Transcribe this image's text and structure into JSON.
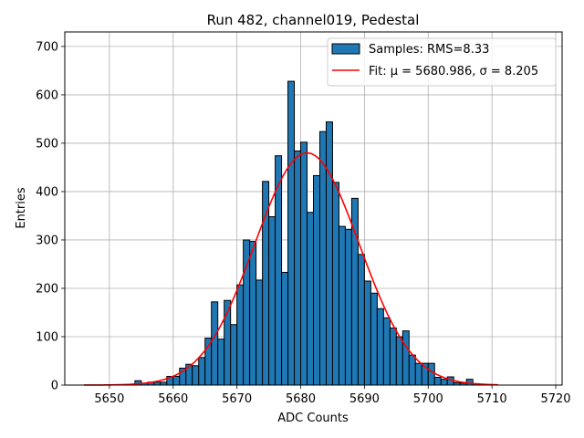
{
  "chart_data": {
    "type": "bar",
    "title": "Run 482, channel019, Pedestal",
    "xlabel": "ADC Counts",
    "ylabel": "Entries",
    "xlim": [
      5643,
      5721
    ],
    "ylim": [
      0,
      730
    ],
    "xticks": [
      5650,
      5660,
      5670,
      5680,
      5690,
      5700,
      5710,
      5720
    ],
    "yticks": [
      0,
      100,
      200,
      300,
      400,
      500,
      600,
      700
    ],
    "grid": true,
    "legend_position": "top-right",
    "colors": {
      "bars": "#1f77b4",
      "bar_edge": "#000000",
      "fit": "#ff0000"
    },
    "histogram": {
      "name": "Samples: RMS=8.33",
      "bin_width": 1.0,
      "bin_left_edges": [
        5654,
        5655,
        5656,
        5657,
        5658,
        5659,
        5660,
        5661,
        5662,
        5663,
        5664,
        5665,
        5666,
        5667,
        5668,
        5669,
        5670,
        5671,
        5672,
        5673,
        5674,
        5675,
        5676,
        5677,
        5678,
        5679,
        5680,
        5681,
        5682,
        5683,
        5684,
        5685,
        5686,
        5687,
        5688,
        5689,
        5690,
        5691,
        5692,
        5693,
        5694,
        5695,
        5696,
        5697,
        5698,
        5699,
        5700,
        5701,
        5702,
        5703,
        5704,
        5705,
        5706,
        5707,
        5708,
        5709
      ],
      "counts": [
        9,
        4,
        6,
        6,
        6,
        18,
        18,
        35,
        43,
        40,
        57,
        97,
        172,
        95,
        175,
        125,
        207,
        300,
        297,
        217,
        421,
        348,
        474,
        233,
        628,
        484,
        502,
        357,
        433,
        524,
        544,
        419,
        328,
        322,
        386,
        270,
        215,
        190,
        158,
        139,
        118,
        100,
        112,
        62,
        45,
        45,
        45,
        16,
        12,
        17,
        5,
        4,
        12,
        3,
        2,
        1
      ]
    },
    "fit": {
      "name": "Fit: μ = 5680.986, σ = 8.205",
      "mu": 5680.986,
      "sigma": 8.205,
      "amplitude": 480,
      "x_range": [
        5646,
        5711
      ]
    }
  }
}
